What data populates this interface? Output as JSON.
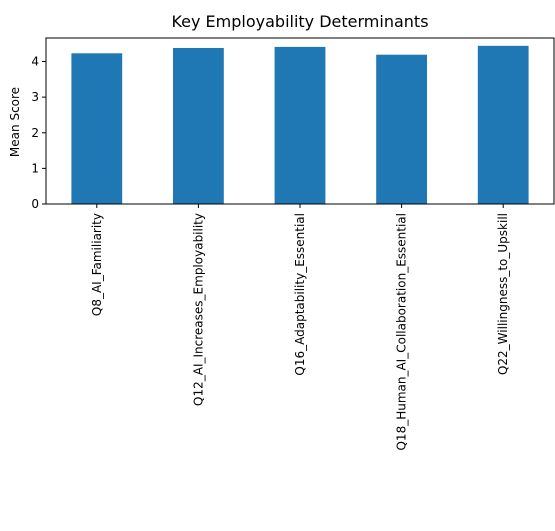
{
  "chart_data": {
    "type": "bar",
    "title": "Key Employability Determinants",
    "xlabel": "",
    "ylabel": "Mean Score",
    "categories": [
      "Q8_AI_Familiarity",
      "Q12_AI_Increases_Employability",
      "Q16_Adaptability_Essential",
      "Q18_Human_AI_Collaboration_Essential",
      "Q22_Willingness_to_Upskill"
    ],
    "values": [
      4.23,
      4.38,
      4.41,
      4.19,
      4.44
    ],
    "yticks": [
      "0",
      "1",
      "2",
      "3",
      "4"
    ],
    "ylim": [
      0,
      4.66
    ],
    "grid": false,
    "bar_color": "#1f77b4"
  }
}
